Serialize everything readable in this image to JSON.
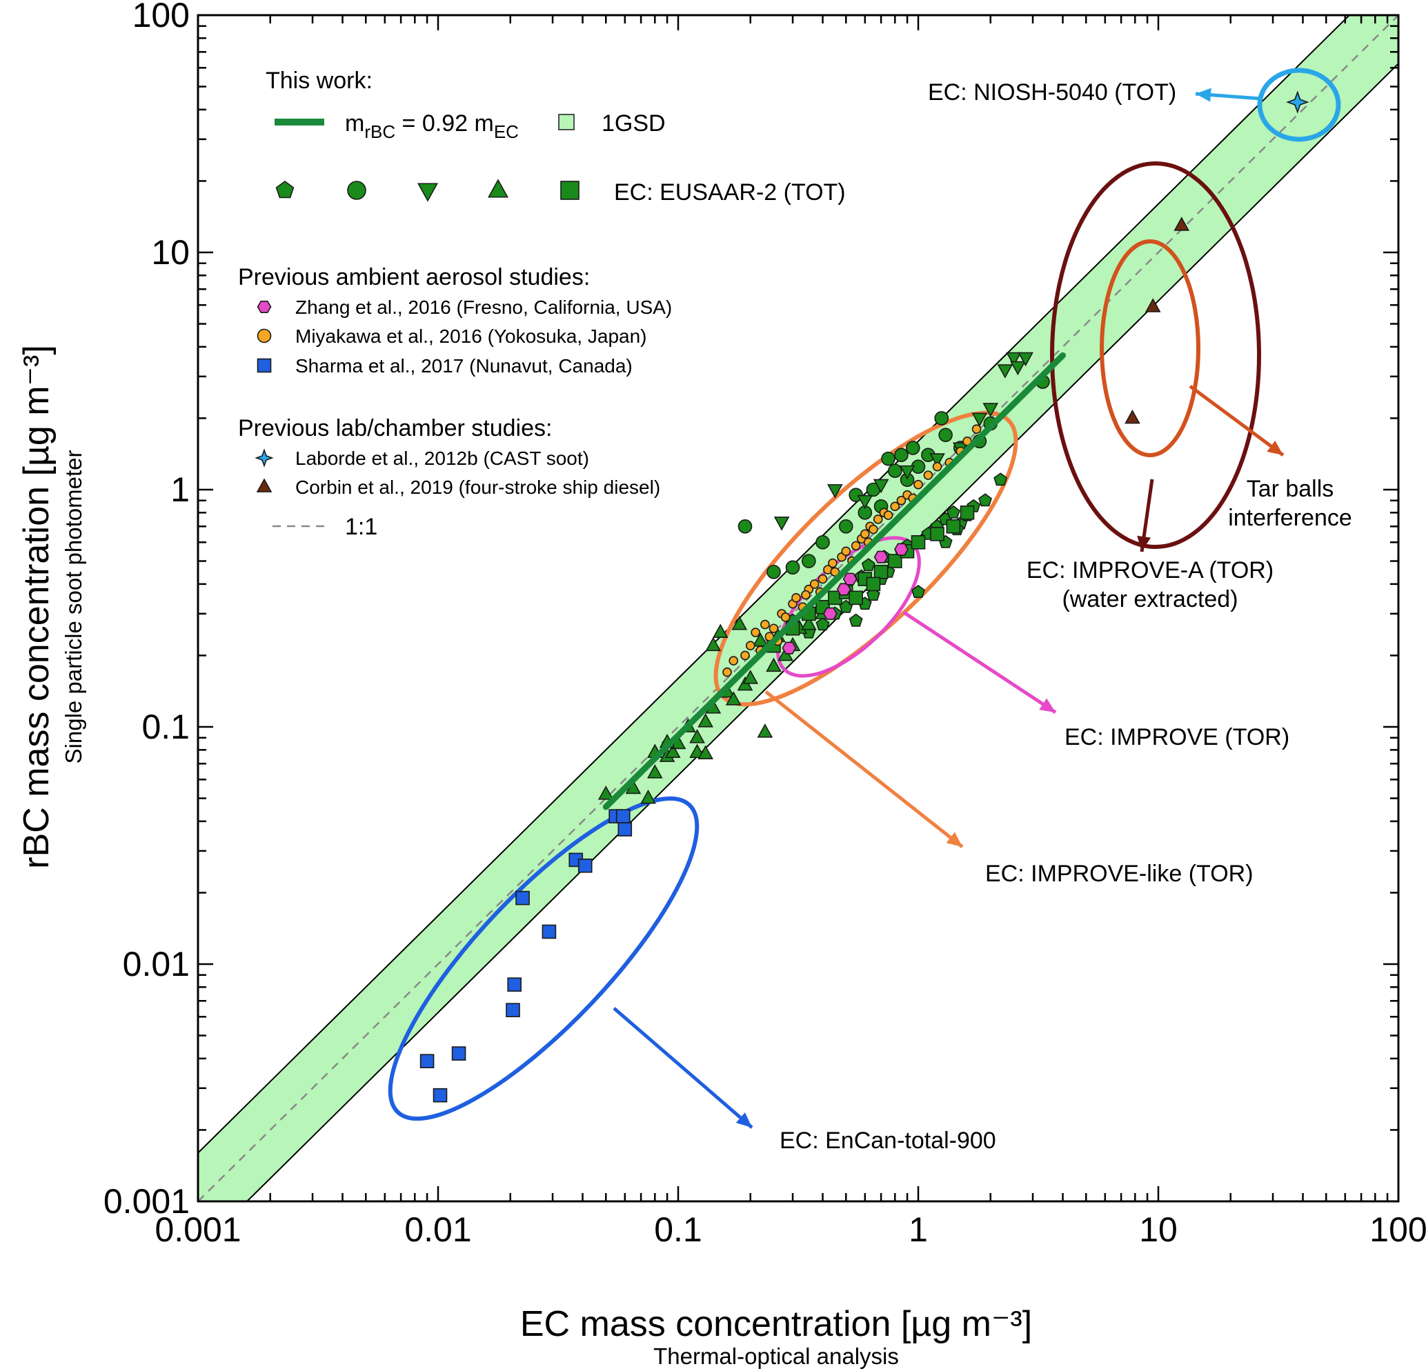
{
  "chart_data": {
    "type": "scatter",
    "xscale": "log",
    "yscale": "log",
    "xlim": [
      0.001,
      100
    ],
    "ylim": [
      0.001,
      100
    ],
    "x_ticks": [
      "0.001",
      "0.01",
      "0.1",
      "1",
      "10",
      "100"
    ],
    "y_ticks": [
      "0.001",
      "0.01",
      "0.1",
      "1",
      "10",
      "100"
    ],
    "xlabel": "EC mass concentration  [µg m⁻³]",
    "xlabel_sub": "Thermal-optical analysis",
    "ylabel": "rBC mass concentration  [µg m⁻³]",
    "ylabel_sub": "Single particle soot photometer",
    "reference_lines": {
      "one_to_one": {
        "label": "1:1",
        "color": "#888888",
        "style": "dashed"
      },
      "fit": {
        "slope": 0.92,
        "x_range": [
          0.05,
          4.0
        ],
        "color": "#1a8a3a"
      },
      "gsd_band": {
        "label": "1GSD",
        "factor": 1.6,
        "color": "#b8f5b8"
      }
    },
    "legend": {
      "this_work_header": "This work:",
      "fit_label_parts": [
        "m",
        "rBC",
        " = 0.92 m",
        "EC"
      ],
      "gsd_label": "1GSD",
      "eusaar_label": "EC: EUSAAR-2 (TOT)",
      "ambient_header": "Previous ambient aerosol studies:",
      "lab_header": "Previous lab/chamber studies:",
      "entries": [
        {
          "label": "Zhang et al., 2016 (Fresno, California, USA)",
          "marker": "hexagon",
          "color": "#e64ac8"
        },
        {
          "label": "Miyakawa et al., 2016 (Yokosuka, Japan)",
          "marker": "circle",
          "color": "#f5a623"
        },
        {
          "label": "Sharma et al., 2017 (Nunavut, Canada)",
          "marker": "square",
          "color": "#1f5fe0"
        },
        {
          "label": "Laborde et al., 2012b (CAST soot)",
          "marker": "star",
          "color": "#2aa6e8"
        },
        {
          "label": "Corbin et al., 2019 (four-stroke ship diesel)",
          "marker": "triangle",
          "color": "#6b2a10"
        }
      ],
      "one_to_one_label": "1:1"
    },
    "series": [
      {
        "name": "Sharma et al., 2017 (Nunavut, Canada)",
        "marker": "square",
        "color": "#1f5fe0",
        "points": [
          [
            0.009,
            0.0039
          ],
          [
            0.0102,
            0.0028
          ],
          [
            0.0122,
            0.0042
          ],
          [
            0.0205,
            0.0064
          ],
          [
            0.0208,
            0.0082
          ],
          [
            0.0225,
            0.019
          ],
          [
            0.029,
            0.0137
          ],
          [
            0.0375,
            0.0275
          ],
          [
            0.041,
            0.026
          ],
          [
            0.055,
            0.042
          ],
          [
            0.059,
            0.042
          ],
          [
            0.06,
            0.037
          ]
        ]
      },
      {
        "name": "Laborde et al., 2012b (CAST soot)",
        "marker": "star",
        "color": "#2aa6e8",
        "points": [
          [
            38,
            43
          ]
        ]
      },
      {
        "name": "Corbin et al., 2019 (four-stroke ship diesel)",
        "marker": "triangle",
        "color": "#6b2a10",
        "points": [
          [
            7.8,
            2.0
          ],
          [
            9.5,
            5.9
          ],
          [
            12.5,
            13
          ]
        ]
      },
      {
        "name": "Zhang et al., 2016 (Fresno, California, USA)",
        "marker": "hexagon",
        "color": "#e64ac8",
        "points": [
          [
            0.29,
            0.215
          ],
          [
            0.43,
            0.3
          ],
          [
            0.49,
            0.38
          ],
          [
            0.52,
            0.42
          ],
          [
            0.7,
            0.52
          ],
          [
            0.85,
            0.56
          ]
        ]
      },
      {
        "name": "Miyakawa et al., 2016 (Yokosuka, Japan)",
        "marker": "circle",
        "color": "#f5a623",
        "points": [
          [
            0.19,
            0.2
          ],
          [
            0.2,
            0.22
          ],
          [
            0.21,
            0.25
          ],
          [
            0.23,
            0.27
          ],
          [
            0.25,
            0.26
          ],
          [
            0.27,
            0.3
          ],
          [
            0.28,
            0.29
          ],
          [
            0.3,
            0.33
          ],
          [
            0.31,
            0.35
          ],
          [
            0.33,
            0.32
          ],
          [
            0.35,
            0.38
          ],
          [
            0.37,
            0.4
          ],
          [
            0.4,
            0.42
          ],
          [
            0.42,
            0.46
          ],
          [
            0.45,
            0.45
          ],
          [
            0.48,
            0.52
          ],
          [
            0.5,
            0.55
          ],
          [
            0.53,
            0.5
          ],
          [
            0.55,
            0.58
          ],
          [
            0.58,
            0.62
          ],
          [
            0.6,
            0.65
          ],
          [
            0.63,
            0.7
          ],
          [
            0.65,
            0.68
          ],
          [
            0.68,
            0.75
          ],
          [
            0.72,
            0.8
          ],
          [
            0.75,
            0.78
          ],
          [
            0.8,
            0.85
          ],
          [
            0.85,
            0.9
          ],
          [
            0.9,
            0.95
          ],
          [
            1.0,
            1.05
          ],
          [
            1.1,
            1.15
          ],
          [
            1.2,
            1.25
          ],
          [
            1.35,
            1.3
          ],
          [
            1.5,
            1.45
          ],
          [
            1.6,
            1.6
          ],
          [
            1.75,
            1.8
          ],
          [
            0.16,
            0.17
          ],
          [
            0.17,
            0.19
          ],
          [
            0.22,
            0.21
          ],
          [
            0.24,
            0.24
          ],
          [
            0.26,
            0.23
          ],
          [
            0.34,
            0.36
          ],
          [
            0.39,
            0.37
          ],
          [
            0.44,
            0.49
          ],
          [
            0.62,
            0.6
          ],
          [
            0.95,
            0.92
          ]
        ]
      },
      {
        "name": "EC: EUSAAR-2 (TOT) – pentagon",
        "marker": "pentagon",
        "color": "#1a8a1a",
        "points": [
          [
            0.3,
            0.28
          ],
          [
            0.35,
            0.25
          ],
          [
            0.4,
            0.27
          ],
          [
            0.45,
            0.3
          ],
          [
            0.5,
            0.32
          ],
          [
            0.55,
            0.28
          ],
          [
            0.6,
            0.33
          ],
          [
            0.65,
            0.36
          ],
          [
            0.7,
            0.42
          ],
          [
            0.75,
            0.45
          ],
          [
            0.8,
            0.5
          ],
          [
            0.85,
            0.55
          ],
          [
            0.9,
            0.58
          ],
          [
            1.0,
            0.37
          ],
          [
            1.1,
            0.65
          ],
          [
            1.2,
            0.7
          ],
          [
            1.3,
            0.75
          ],
          [
            1.4,
            0.8
          ],
          [
            1.5,
            0.72
          ],
          [
            1.6,
            0.78
          ],
          [
            1.7,
            0.85
          ],
          [
            1.9,
            0.9
          ],
          [
            2.2,
            1.1
          ],
          [
            1.3,
            0.6
          ],
          [
            1.45,
            0.68
          ],
          [
            0.62,
            0.48
          ],
          [
            0.72,
            0.52
          ],
          [
            0.58,
            0.43
          ]
        ]
      },
      {
        "name": "EC: EUSAAR-2 (TOT) – circle",
        "marker": "circle",
        "color": "#1a8a1a",
        "points": [
          [
            0.19,
            0.7
          ],
          [
            0.25,
            0.45
          ],
          [
            0.3,
            0.47
          ],
          [
            0.35,
            0.5
          ],
          [
            0.4,
            0.6
          ],
          [
            0.5,
            0.7
          ],
          [
            0.6,
            0.8
          ],
          [
            0.7,
            0.85
          ],
          [
            0.8,
            1.2
          ],
          [
            0.9,
            1.1
          ],
          [
            1.0,
            1.25
          ],
          [
            1.1,
            1.4
          ],
          [
            1.25,
            2.0
          ],
          [
            1.3,
            1.7
          ],
          [
            1.5,
            1.5
          ],
          [
            1.8,
            1.6
          ],
          [
            2.0,
            1.9
          ],
          [
            3.3,
            2.85
          ],
          [
            0.75,
            1.35
          ],
          [
            0.85,
            1.4
          ],
          [
            0.55,
            0.95
          ],
          [
            0.65,
            1.0
          ],
          [
            0.95,
            1.5
          ]
        ]
      },
      {
        "name": "EC: EUSAAR-2 (TOT) – triangle down",
        "marker": "triangle-down",
        "color": "#1a8a1a",
        "points": [
          [
            0.27,
            0.73
          ],
          [
            0.45,
            1.0
          ],
          [
            0.6,
            0.9
          ],
          [
            0.7,
            1.05
          ],
          [
            0.9,
            1.2
          ],
          [
            1.2,
            1.35
          ],
          [
            1.5,
            1.5
          ],
          [
            1.8,
            2.0
          ],
          [
            2.0,
            2.2
          ],
          [
            2.3,
            3.2
          ],
          [
            2.5,
            3.6
          ],
          [
            2.6,
            3.3
          ],
          [
            2.8,
            3.6
          ]
        ]
      },
      {
        "name": "EC: EUSAAR-2 (TOT) – triangle up",
        "marker": "triangle",
        "color": "#1a8a1a",
        "points": [
          [
            0.05,
            0.052
          ],
          [
            0.065,
            0.055
          ],
          [
            0.075,
            0.05
          ],
          [
            0.08,
            0.064
          ],
          [
            0.09,
            0.075
          ],
          [
            0.095,
            0.078
          ],
          [
            0.1,
            0.085
          ],
          [
            0.11,
            0.1
          ],
          [
            0.12,
            0.09
          ],
          [
            0.13,
            0.105
          ],
          [
            0.14,
            0.12
          ],
          [
            0.16,
            0.14
          ],
          [
            0.17,
            0.13
          ],
          [
            0.19,
            0.15
          ],
          [
            0.2,
            0.16
          ],
          [
            0.23,
            0.095
          ],
          [
            0.25,
            0.18
          ],
          [
            0.28,
            0.2
          ],
          [
            0.3,
            0.22
          ],
          [
            0.32,
            0.26
          ],
          [
            0.35,
            0.27
          ],
          [
            0.4,
            0.3
          ],
          [
            0.12,
            0.078
          ],
          [
            0.13,
            0.077
          ],
          [
            0.14,
            0.22
          ],
          [
            0.15,
            0.25
          ],
          [
            0.18,
            0.27
          ],
          [
            0.22,
            0.23
          ],
          [
            0.26,
            0.24
          ],
          [
            0.08,
            0.078
          ],
          [
            0.09,
            0.086
          ]
        ]
      },
      {
        "name": "EC: EUSAAR-2 (TOT) – square",
        "marker": "square",
        "color": "#1a8a1a",
        "points": [
          [
            0.25,
            0.22
          ],
          [
            0.3,
            0.26
          ],
          [
            0.35,
            0.3
          ],
          [
            0.4,
            0.32
          ],
          [
            0.45,
            0.35
          ],
          [
            0.5,
            0.37
          ],
          [
            0.6,
            0.42
          ],
          [
            0.7,
            0.45
          ],
          [
            0.8,
            0.5
          ],
          [
            0.9,
            0.55
          ],
          [
            1.0,
            0.6
          ],
          [
            1.2,
            0.65
          ],
          [
            1.4,
            0.7
          ],
          [
            1.6,
            0.8
          ],
          [
            0.55,
            0.35
          ],
          [
            0.65,
            0.4
          ]
        ]
      }
    ],
    "annotations": [
      {
        "text": "EC: NIOSH-5040 (TOT)",
        "color": "#2aa6e8"
      },
      {
        "text": "Tar balls",
        "text2": "interference",
        "color": "#d2521e"
      },
      {
        "text": "EC: IMPROVE-A (TOR)",
        "text2": "(water extracted)",
        "color": "#5a1010"
      },
      {
        "text": "EC: IMPROVE (TOR)",
        "color": "#e64ac8"
      },
      {
        "text": "EC: IMPROVE-like (TOR)",
        "color": "#f08040"
      },
      {
        "text": "EC: EnCan-total-900",
        "color": "#1f5fe0"
      }
    ]
  }
}
